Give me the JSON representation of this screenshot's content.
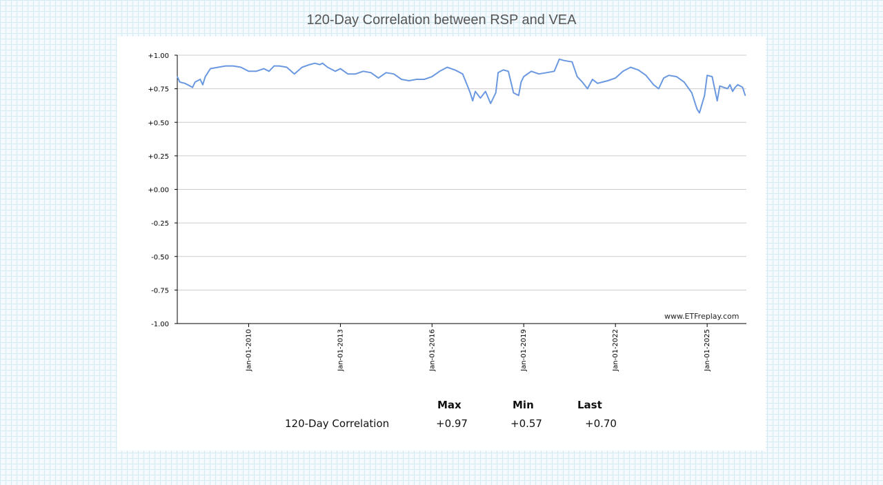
{
  "title": "120-Day Correlation between RSP and VEA",
  "watermark": "www.ETFreplay.com",
  "colors": {
    "line": "#6a98e0",
    "grid": "#cccccc",
    "axis": "#000000"
  },
  "chart_data": {
    "type": "line",
    "title": "120-Day Correlation between RSP and VEA",
    "xlabel": "",
    "ylabel": "",
    "ylim": [
      -1.0,
      1.0
    ],
    "yticks": [
      "+1.00",
      "+0.75",
      "+0.50",
      "+0.25",
      "+0.00",
      "-0.25",
      "-0.50",
      "-0.75",
      "-1.00"
    ],
    "ytick_values": [
      1.0,
      0.75,
      0.5,
      0.25,
      0.0,
      -0.25,
      -0.5,
      -0.75,
      -1.0
    ],
    "xlim": [
      "2007-09-01",
      "2026-04-15"
    ],
    "xticks": [
      "Jan-01-2010",
      "Jan-01-2013",
      "Jan-01-2016",
      "Jan-01-2019",
      "Jan-01-2022",
      "Jan-01-2025"
    ],
    "xtick_dates": [
      "2010-01-01",
      "2013-01-01",
      "2016-01-01",
      "2019-01-01",
      "2022-01-01",
      "2025-01-01"
    ],
    "grid": true,
    "series": [
      {
        "name": "",
        "x": [
          "2007-09-01",
          "2007-10-01",
          "2007-12-01",
          "2008-02-01",
          "2008-03-01",
          "2008-04-01",
          "2008-06-01",
          "2008-07-01",
          "2008-08-01",
          "2008-10-01",
          "2009-01-01",
          "2009-04-01",
          "2009-07-01",
          "2009-10-01",
          "2010-01-01",
          "2010-04-01",
          "2010-07-01",
          "2010-09-01",
          "2010-11-01",
          "2011-01-01",
          "2011-04-01",
          "2011-07-01",
          "2011-10-01",
          "2012-01-01",
          "2012-03-01",
          "2012-05-01",
          "2012-06-01",
          "2012-08-01",
          "2012-11-01",
          "2013-01-01",
          "2013-04-01",
          "2013-07-01",
          "2013-10-01",
          "2014-01-01",
          "2014-04-01",
          "2014-07-01",
          "2014-10-01",
          "2015-01-01",
          "2015-04-01",
          "2015-07-01",
          "2015-10-01",
          "2016-01-01",
          "2016-04-01",
          "2016-07-01",
          "2016-10-01",
          "2017-01-01",
          "2017-03-01",
          "2017-04-01",
          "2017-05-01",
          "2017-06-01",
          "2017-08-01",
          "2017-10-01",
          "2017-12-01",
          "2018-02-01",
          "2018-03-01",
          "2018-05-01",
          "2018-07-01",
          "2018-09-01",
          "2018-11-01",
          "2018-12-01",
          "2019-01-01",
          "2019-04-01",
          "2019-07-01",
          "2019-10-01",
          "2020-01-01",
          "2020-03-01",
          "2020-05-01",
          "2020-08-01",
          "2020-10-01",
          "2020-12-01",
          "2021-02-01",
          "2021-04-01",
          "2021-06-01",
          "2021-08-01",
          "2021-10-01",
          "2022-01-01",
          "2022-04-01",
          "2022-07-01",
          "2022-10-01",
          "2023-01-01",
          "2023-04-01",
          "2023-06-01",
          "2023-08-01",
          "2023-10-01",
          "2024-01-01",
          "2024-04-01",
          "2024-07-01",
          "2024-09-01",
          "2024-10-01",
          "2024-12-01",
          "2025-01-01",
          "2025-03-01",
          "2025-05-01",
          "2025-06-01",
          "2025-09-01",
          "2025-10-01",
          "2025-11-01",
          "2025-12-01",
          "2026-01-01",
          "2026-02-01",
          "2026-03-01",
          "2026-04-01"
        ],
        "y": [
          0.84,
          0.8,
          0.79,
          0.77,
          0.76,
          0.8,
          0.82,
          0.78,
          0.84,
          0.9,
          0.91,
          0.92,
          0.92,
          0.91,
          0.88,
          0.88,
          0.9,
          0.88,
          0.92,
          0.92,
          0.91,
          0.86,
          0.91,
          0.93,
          0.94,
          0.93,
          0.94,
          0.91,
          0.88,
          0.9,
          0.86,
          0.86,
          0.88,
          0.87,
          0.83,
          0.87,
          0.86,
          0.82,
          0.81,
          0.82,
          0.82,
          0.84,
          0.88,
          0.91,
          0.89,
          0.86,
          0.77,
          0.72,
          0.66,
          0.73,
          0.68,
          0.73,
          0.64,
          0.72,
          0.87,
          0.89,
          0.88,
          0.72,
          0.7,
          0.8,
          0.84,
          0.88,
          0.86,
          0.87,
          0.88,
          0.97,
          0.96,
          0.95,
          0.84,
          0.8,
          0.75,
          0.82,
          0.79,
          0.8,
          0.81,
          0.83,
          0.88,
          0.91,
          0.89,
          0.85,
          0.78,
          0.75,
          0.83,
          0.85,
          0.84,
          0.8,
          0.72,
          0.6,
          0.57,
          0.7,
          0.85,
          0.84,
          0.66,
          0.77,
          0.75,
          0.78,
          0.73,
          0.76,
          0.78,
          0.77,
          0.76,
          0.7
        ]
      }
    ]
  },
  "stats": {
    "headers": [
      "Max",
      "Min",
      "Last"
    ],
    "row_label": "120-Day Correlation",
    "values": [
      "+0.97",
      "+0.57",
      "+0.70"
    ]
  }
}
